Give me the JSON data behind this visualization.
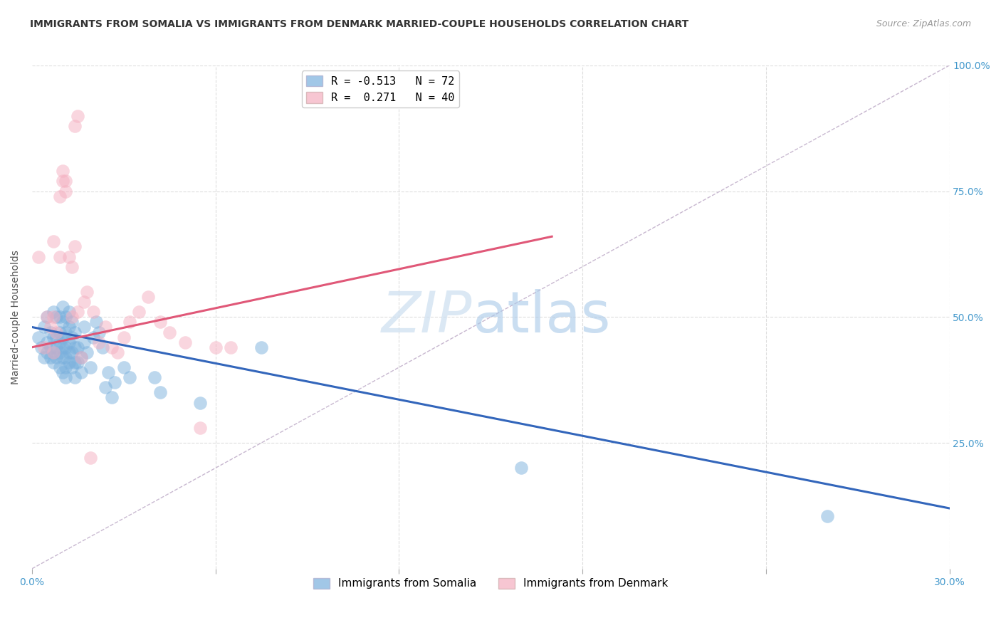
{
  "title": "IMMIGRANTS FROM SOMALIA VS IMMIGRANTS FROM DENMARK MARRIED-COUPLE HOUSEHOLDS CORRELATION CHART",
  "source": "Source: ZipAtlas.com",
  "ylabel": "Married-couple Households",
  "xlim": [
    0.0,
    0.3
  ],
  "ylim": [
    0.0,
    1.0
  ],
  "somalia_scatter": [
    [
      0.002,
      0.46
    ],
    [
      0.003,
      0.44
    ],
    [
      0.004,
      0.48
    ],
    [
      0.004,
      0.42
    ],
    [
      0.005,
      0.5
    ],
    [
      0.005,
      0.45
    ],
    [
      0.005,
      0.43
    ],
    [
      0.006,
      0.47
    ],
    [
      0.006,
      0.44
    ],
    [
      0.006,
      0.42
    ],
    [
      0.007,
      0.51
    ],
    [
      0.007,
      0.46
    ],
    [
      0.007,
      0.43
    ],
    [
      0.007,
      0.41
    ],
    [
      0.008,
      0.5
    ],
    [
      0.008,
      0.46
    ],
    [
      0.008,
      0.44
    ],
    [
      0.008,
      0.42
    ],
    [
      0.009,
      0.5
    ],
    [
      0.009,
      0.47
    ],
    [
      0.009,
      0.45
    ],
    [
      0.009,
      0.43
    ],
    [
      0.009,
      0.4
    ],
    [
      0.01,
      0.52
    ],
    [
      0.01,
      0.49
    ],
    [
      0.01,
      0.46
    ],
    [
      0.01,
      0.44
    ],
    [
      0.01,
      0.42
    ],
    [
      0.01,
      0.39
    ],
    [
      0.011,
      0.5
    ],
    [
      0.011,
      0.47
    ],
    [
      0.011,
      0.44
    ],
    [
      0.011,
      0.42
    ],
    [
      0.011,
      0.4
    ],
    [
      0.011,
      0.38
    ],
    [
      0.012,
      0.51
    ],
    [
      0.012,
      0.48
    ],
    [
      0.012,
      0.45
    ],
    [
      0.012,
      0.43
    ],
    [
      0.012,
      0.41
    ],
    [
      0.013,
      0.49
    ],
    [
      0.013,
      0.46
    ],
    [
      0.013,
      0.43
    ],
    [
      0.013,
      0.4
    ],
    [
      0.014,
      0.47
    ],
    [
      0.014,
      0.44
    ],
    [
      0.014,
      0.41
    ],
    [
      0.014,
      0.38
    ],
    [
      0.015,
      0.44
    ],
    [
      0.015,
      0.41
    ],
    [
      0.016,
      0.42
    ],
    [
      0.016,
      0.39
    ],
    [
      0.017,
      0.48
    ],
    [
      0.017,
      0.45
    ],
    [
      0.018,
      0.43
    ],
    [
      0.019,
      0.4
    ],
    [
      0.02,
      0.46
    ],
    [
      0.021,
      0.49
    ],
    [
      0.022,
      0.47
    ],
    [
      0.023,
      0.44
    ],
    [
      0.024,
      0.36
    ],
    [
      0.025,
      0.39
    ],
    [
      0.026,
      0.34
    ],
    [
      0.027,
      0.37
    ],
    [
      0.03,
      0.4
    ],
    [
      0.032,
      0.38
    ],
    [
      0.04,
      0.38
    ],
    [
      0.042,
      0.35
    ],
    [
      0.055,
      0.33
    ],
    [
      0.075,
      0.44
    ],
    [
      0.16,
      0.2
    ],
    [
      0.26,
      0.105
    ]
  ],
  "denmark_scatter": [
    [
      0.002,
      0.62
    ],
    [
      0.004,
      0.44
    ],
    [
      0.005,
      0.5
    ],
    [
      0.006,
      0.48
    ],
    [
      0.007,
      0.43
    ],
    [
      0.007,
      0.65
    ],
    [
      0.008,
      0.47
    ],
    [
      0.009,
      0.74
    ],
    [
      0.01,
      0.77
    ],
    [
      0.01,
      0.79
    ],
    [
      0.011,
      0.77
    ],
    [
      0.011,
      0.75
    ],
    [
      0.012,
      0.62
    ],
    [
      0.013,
      0.6
    ],
    [
      0.013,
      0.5
    ],
    [
      0.014,
      0.64
    ],
    [
      0.014,
      0.88
    ],
    [
      0.015,
      0.9
    ],
    [
      0.015,
      0.51
    ],
    [
      0.016,
      0.42
    ],
    [
      0.017,
      0.53
    ],
    [
      0.018,
      0.55
    ],
    [
      0.019,
      0.22
    ],
    [
      0.02,
      0.51
    ],
    [
      0.022,
      0.45
    ],
    [
      0.024,
      0.48
    ],
    [
      0.026,
      0.44
    ],
    [
      0.028,
      0.43
    ],
    [
      0.03,
      0.46
    ],
    [
      0.032,
      0.49
    ],
    [
      0.035,
      0.51
    ],
    [
      0.038,
      0.54
    ],
    [
      0.042,
      0.49
    ],
    [
      0.045,
      0.47
    ],
    [
      0.05,
      0.45
    ],
    [
      0.055,
      0.28
    ],
    [
      0.06,
      0.44
    ],
    [
      0.065,
      0.44
    ],
    [
      0.007,
      0.5
    ],
    [
      0.009,
      0.62
    ]
  ],
  "somalia_line": {
    "x0": 0.0,
    "y0": 0.48,
    "x1": 0.3,
    "y1": 0.12
  },
  "denmark_line": {
    "x0": 0.0,
    "y0": 0.44,
    "x1": 0.17,
    "y1": 0.66
  },
  "diagonal_line": {
    "x0": 0.0,
    "y0": 0.0,
    "x1": 0.3,
    "y1": 1.0
  },
  "somalia_color": "#7ab0dd",
  "denmark_color": "#f5afc0",
  "somalia_edge_color": "#5a90bd",
  "denmark_edge_color": "#e080a0",
  "somalia_line_color": "#3366bb",
  "denmark_line_color": "#e05878",
  "diagonal_color": "#c8b8d0",
  "watermark_zip": "ZIP",
  "watermark_atlas": "atlas",
  "background_color": "#ffffff",
  "grid_color": "#dddddd",
  "legend1_label": "R = -0.513   N = 72",
  "legend2_label": "R =  0.271   N = 40",
  "bottom_legend1": "Immigrants from Somalia",
  "bottom_legend2": "Immigrants from Denmark",
  "ytick_vals": [
    0.0,
    0.25,
    0.5,
    0.75,
    1.0
  ],
  "ytick_labels": [
    "",
    "25.0%",
    "50.0%",
    "75.0%",
    "100.0%"
  ],
  "xtick_vals": [
    0.0,
    0.06,
    0.12,
    0.18,
    0.24,
    0.3
  ],
  "xtick_labels": [
    "0.0%",
    "",
    "",
    "",
    "",
    "30.0%"
  ]
}
